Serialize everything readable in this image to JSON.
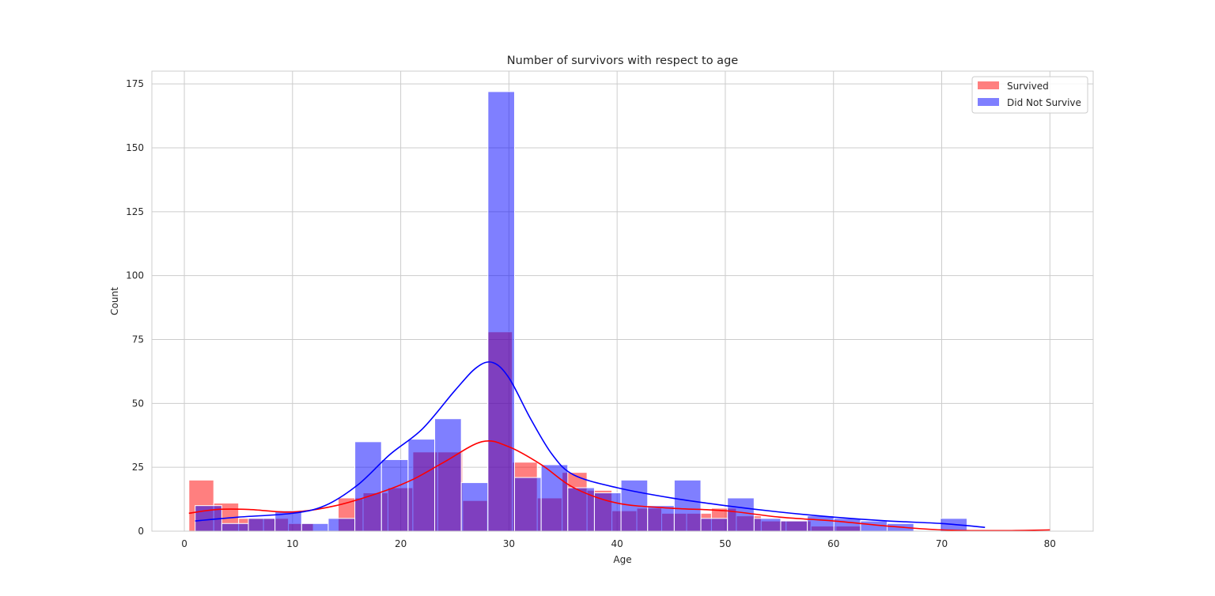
{
  "chart_data": {
    "type": "bar",
    "subtype": "histogram-with-kde",
    "title": "Number of survivors with respect to age",
    "xlabel": "Age",
    "ylabel": "Count",
    "xlim": [
      -3,
      84
    ],
    "ylim": [
      0,
      180
    ],
    "xticks": [
      0,
      10,
      20,
      30,
      40,
      50,
      60,
      70,
      80
    ],
    "yticks": [
      0,
      25,
      50,
      75,
      100,
      125,
      150,
      175
    ],
    "grid": true,
    "legend_position": "top-right",
    "series": [
      {
        "name": "Survived",
        "color": "#ff0000",
        "bin_width": 2.3,
        "bins": [
          {
            "start": 0.42,
            "count": 20
          },
          {
            "start": 2.72,
            "count": 11
          },
          {
            "start": 5.02,
            "count": 5
          },
          {
            "start": 7.32,
            "count": 5
          },
          {
            "start": 9.62,
            "count": 3
          },
          {
            "start": 11.92,
            "count": 0
          },
          {
            "start": 14.22,
            "count": 13
          },
          {
            "start": 16.52,
            "count": 15
          },
          {
            "start": 18.82,
            "count": 17
          },
          {
            "start": 21.12,
            "count": 31
          },
          {
            "start": 23.42,
            "count": 31
          },
          {
            "start": 25.72,
            "count": 12
          },
          {
            "start": 28.02,
            "count": 78
          },
          {
            "start": 30.32,
            "count": 27
          },
          {
            "start": 32.62,
            "count": 13
          },
          {
            "start": 34.92,
            "count": 23
          },
          {
            "start": 37.22,
            "count": 16
          },
          {
            "start": 39.52,
            "count": 8
          },
          {
            "start": 41.82,
            "count": 9
          },
          {
            "start": 44.12,
            "count": 7
          },
          {
            "start": 46.42,
            "count": 7
          },
          {
            "start": 48.72,
            "count": 9
          },
          {
            "start": 51.02,
            "count": 6
          },
          {
            "start": 53.32,
            "count": 4
          },
          {
            "start": 55.62,
            "count": 4
          },
          {
            "start": 57.92,
            "count": 2
          },
          {
            "start": 60.22,
            "count": 2
          },
          {
            "start": 62.52,
            "count": 0
          },
          {
            "start": 64.82,
            "count": 0
          },
          {
            "start": 77.4,
            "count": 0
          }
        ],
        "kde": [
          [
            0.42,
            7
          ],
          [
            3,
            8.5
          ],
          [
            6,
            8.5
          ],
          [
            10,
            7.5
          ],
          [
            14,
            10
          ],
          [
            18,
            15
          ],
          [
            21,
            20
          ],
          [
            24,
            27
          ],
          [
            27.5,
            35
          ],
          [
            30,
            33
          ],
          [
            33,
            26
          ],
          [
            36,
            17
          ],
          [
            40,
            11
          ],
          [
            45,
            9
          ],
          [
            50,
            8
          ],
          [
            55,
            5.5
          ],
          [
            60,
            4
          ],
          [
            65,
            2
          ],
          [
            70,
            0.5
          ],
          [
            75,
            0.2
          ],
          [
            80,
            0.5
          ]
        ]
      },
      {
        "name": "Did Not Survive",
        "color": "#0000ff",
        "bin_width": 2.46,
        "bins": [
          {
            "start": 1.0,
            "count": 10
          },
          {
            "start": 3.46,
            "count": 3
          },
          {
            "start": 5.92,
            "count": 5
          },
          {
            "start": 8.38,
            "count": 8
          },
          {
            "start": 10.84,
            "count": 3
          },
          {
            "start": 13.3,
            "count": 5
          },
          {
            "start": 15.76,
            "count": 35
          },
          {
            "start": 18.22,
            "count": 28
          },
          {
            "start": 20.68,
            "count": 36
          },
          {
            "start": 23.14,
            "count": 44
          },
          {
            "start": 25.6,
            "count": 19
          },
          {
            "start": 28.06,
            "count": 172
          },
          {
            "start": 30.52,
            "count": 21
          },
          {
            "start": 32.98,
            "count": 26
          },
          {
            "start": 35.44,
            "count": 17
          },
          {
            "start": 37.9,
            "count": 15
          },
          {
            "start": 40.36,
            "count": 20
          },
          {
            "start": 42.82,
            "count": 10
          },
          {
            "start": 45.28,
            "count": 20
          },
          {
            "start": 47.74,
            "count": 5
          },
          {
            "start": 50.2,
            "count": 13
          },
          {
            "start": 52.66,
            "count": 5
          },
          {
            "start": 55.12,
            "count": 4
          },
          {
            "start": 57.58,
            "count": 6
          },
          {
            "start": 60.04,
            "count": 5
          },
          {
            "start": 62.5,
            "count": 4
          },
          {
            "start": 64.96,
            "count": 3
          },
          {
            "start": 67.42,
            "count": 0
          },
          {
            "start": 69.88,
            "count": 5
          }
        ],
        "kde": [
          [
            1,
            4
          ],
          [
            5,
            5.5
          ],
          [
            10,
            7
          ],
          [
            13,
            10
          ],
          [
            16,
            18
          ],
          [
            19,
            30
          ],
          [
            22,
            40
          ],
          [
            25,
            55
          ],
          [
            27,
            64
          ],
          [
            28.5,
            66
          ],
          [
            30,
            60
          ],
          [
            32,
            44
          ],
          [
            34,
            30
          ],
          [
            36,
            22
          ],
          [
            40,
            17
          ],
          [
            45,
            13
          ],
          [
            50,
            10
          ],
          [
            55,
            7.5
          ],
          [
            60,
            5.5
          ],
          [
            65,
            4
          ],
          [
            70,
            3
          ],
          [
            74,
            1.5
          ]
        ]
      }
    ]
  }
}
